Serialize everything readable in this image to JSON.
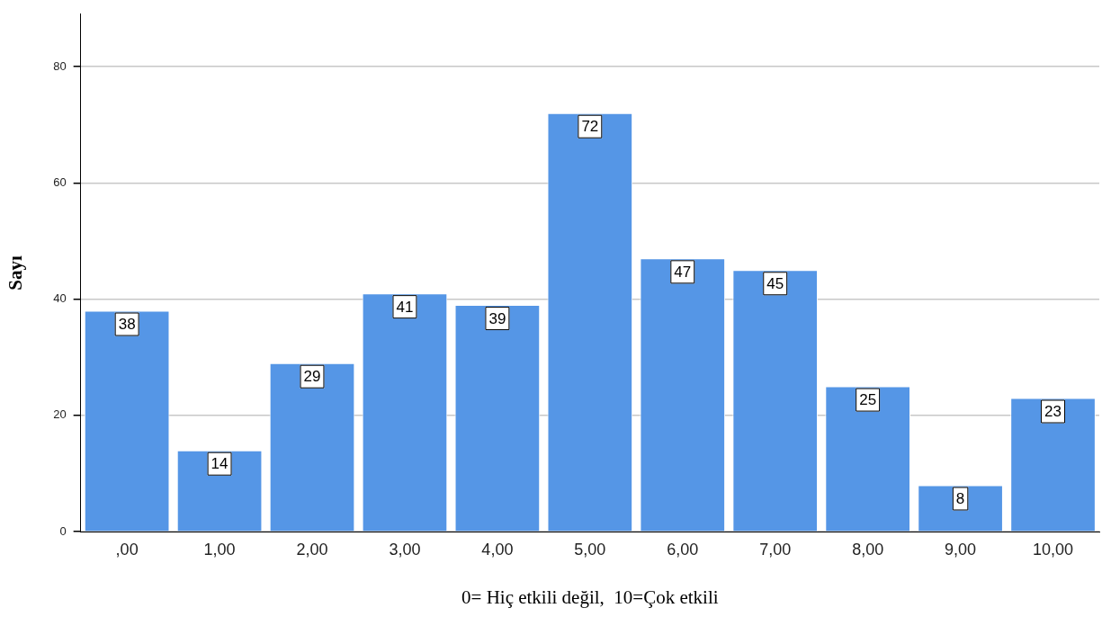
{
  "chart_data": {
    "type": "bar",
    "xlabel": "0= Hiç etkili değil,  10=Çok etkili",
    "ylabel": "Sayı",
    "categories": [
      ",00",
      "1,00",
      "2,00",
      "3,00",
      "4,00",
      "5,00",
      "6,00",
      "7,00",
      "8,00",
      "9,00",
      "10,00"
    ],
    "values": [
      38,
      14,
      29,
      41,
      39,
      72,
      47,
      45,
      25,
      8,
      23
    ],
    "color": "#5596e6",
    "ylim": [
      0,
      89
    ],
    "yticks": [
      0,
      20,
      40,
      60,
      80
    ],
    "grid": "y",
    "data_labels": true,
    "legend": false
  }
}
